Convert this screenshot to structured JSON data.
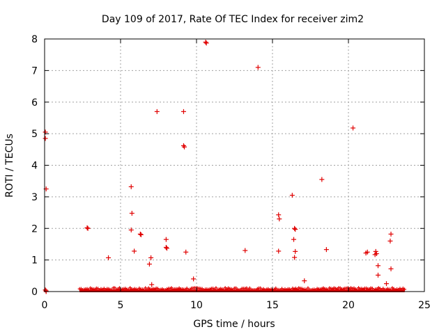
{
  "chart_data": {
    "type": "scatter",
    "title": "Day 109 of 2017, Rate Of TEC Index for receiver zim2",
    "xlabel": "GPS time / hours",
    "ylabel": "ROTI / TECUs",
    "xlim": [
      0,
      25
    ],
    "ylim": [
      0,
      8
    ],
    "xticks": [
      0,
      5,
      10,
      15,
      20,
      25
    ],
    "yticks": [
      0,
      1,
      2,
      3,
      4,
      5,
      6,
      7,
      8
    ],
    "grid": true,
    "marker": "+",
    "color": "#e00000",
    "baseline_band": {
      "x_start": 2.3,
      "x_end": 23.7,
      "y_min": 0.0,
      "y_max": 0.12,
      "description": "dense cluster of low ROTI values"
    },
    "series": [
      {
        "name": "zim2",
        "points": [
          [
            0.05,
            5.05
          ],
          [
            0.05,
            4.85
          ],
          [
            0.1,
            3.25
          ],
          [
            0.05,
            0.05
          ],
          [
            0.1,
            0.02
          ],
          [
            0.1,
            0.0
          ],
          [
            2.8,
            2.02
          ],
          [
            2.85,
            2.0
          ],
          [
            4.2,
            1.07
          ],
          [
            5.7,
            3.32
          ],
          [
            5.75,
            2.48
          ],
          [
            5.7,
            1.95
          ],
          [
            5.9,
            1.28
          ],
          [
            6.3,
            1.82
          ],
          [
            6.35,
            1.8
          ],
          [
            6.9,
            0.87
          ],
          [
            7.0,
            1.07
          ],
          [
            7.05,
            0.22
          ],
          [
            7.4,
            5.7
          ],
          [
            8.0,
            1.65
          ],
          [
            8.0,
            1.4
          ],
          [
            8.05,
            1.37
          ],
          [
            9.15,
            5.7
          ],
          [
            9.15,
            4.62
          ],
          [
            9.2,
            4.58
          ],
          [
            9.3,
            1.25
          ],
          [
            9.8,
            0.4
          ],
          [
            10.6,
            7.9
          ],
          [
            10.65,
            7.87
          ],
          [
            13.2,
            1.3
          ],
          [
            14.05,
            7.1
          ],
          [
            15.4,
            2.43
          ],
          [
            15.45,
            2.3
          ],
          [
            15.4,
            1.28
          ],
          [
            16.3,
            3.05
          ],
          [
            16.45,
            2.0
          ],
          [
            16.5,
            1.97
          ],
          [
            16.4,
            1.65
          ],
          [
            16.5,
            1.27
          ],
          [
            16.45,
            1.08
          ],
          [
            17.1,
            0.34
          ],
          [
            18.25,
            3.55
          ],
          [
            18.55,
            1.33
          ],
          [
            20.3,
            5.18
          ],
          [
            21.15,
            1.22
          ],
          [
            21.25,
            1.25
          ],
          [
            21.8,
            1.27
          ],
          [
            21.75,
            1.17
          ],
          [
            21.85,
            1.2
          ],
          [
            21.95,
            0.82
          ],
          [
            21.95,
            0.52
          ],
          [
            22.5,
            0.25
          ],
          [
            22.8,
            1.82
          ],
          [
            22.75,
            1.6
          ],
          [
            22.8,
            0.72
          ]
        ]
      }
    ]
  }
}
